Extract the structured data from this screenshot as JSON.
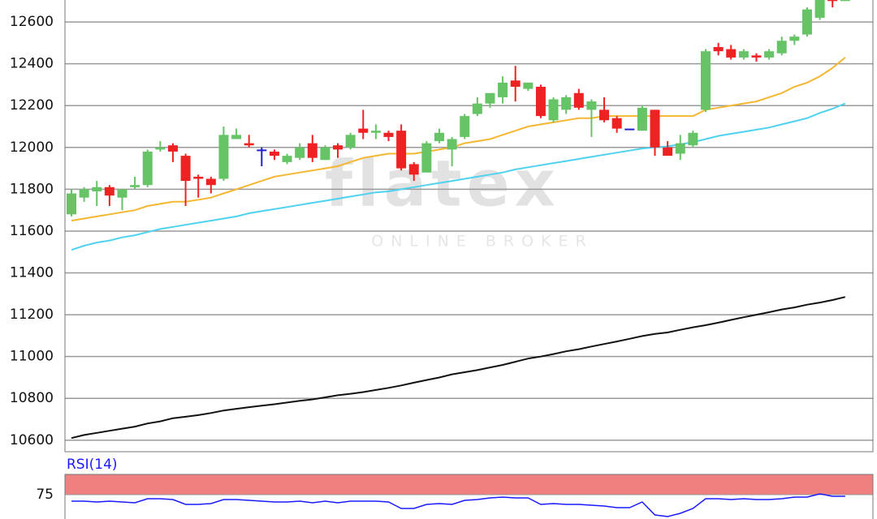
{
  "chart_data": [
    {
      "type": "candlestick",
      "ylim": [
        10545,
        12705
      ],
      "yticks": [
        10600,
        10800,
        11000,
        11200,
        11400,
        11600,
        11800,
        12000,
        12200,
        12400,
        12600
      ],
      "grid": true,
      "up_color": "#66c466",
      "down_color": "#ee2222",
      "flat_color": "#2222cc",
      "open": [
        11680,
        11760,
        11790,
        11810,
        11760,
        11810,
        11820,
        11990,
        12010,
        11960,
        11860,
        11850,
        11850,
        12040,
        12020,
        11990,
        11980,
        11930,
        11950,
        12020,
        11940,
        12010,
        12000,
        12090,
        12070,
        12070,
        12080,
        11920,
        11880,
        12030,
        11990,
        12050,
        12160,
        12210,
        12240,
        12320,
        12280,
        12290,
        12130,
        12180,
        12260,
        12180,
        12180,
        12140,
        12090,
        12080,
        12180,
        12000,
        11970,
        12010,
        12180,
        12480,
        12470,
        12430,
        12440,
        12430,
        12450,
        12510,
        12540,
        12620,
        12720,
        12700
      ],
      "high": [
        11800,
        11810,
        11840,
        11820,
        11800,
        11860,
        11990,
        12030,
        12020,
        11970,
        11870,
        11860,
        12100,
        12090,
        12060,
        12000,
        11990,
        11970,
        12020,
        12060,
        12010,
        12020,
        12070,
        12180,
        12110,
        12080,
        12110,
        11930,
        12030,
        12090,
        12050,
        12160,
        12240,
        12260,
        12340,
        12390,
        12310,
        12300,
        12240,
        12250,
        12280,
        12230,
        12240,
        12150,
        12090,
        12200,
        12180,
        12030,
        12060,
        12080,
        12470,
        12500,
        12490,
        12470,
        12450,
        12470,
        12530,
        12540,
        12670,
        12740,
        12730,
        12720
      ],
      "low": [
        11670,
        11740,
        11720,
        11720,
        11700,
        11800,
        11810,
        11980,
        11930,
        11720,
        11760,
        11780,
        11840,
        12040,
        12000,
        11910,
        11940,
        11920,
        11940,
        11930,
        11940,
        11950,
        11990,
        12040,
        12040,
        12030,
        11890,
        11840,
        11890,
        12020,
        11910,
        12040,
        12150,
        12190,
        12210,
        12220,
        12270,
        12140,
        12120,
        12160,
        12180,
        12050,
        12120,
        12070,
        12090,
        12080,
        11960,
        11960,
        11940,
        12000,
        12170,
        12440,
        12420,
        12420,
        12410,
        12420,
        12440,
        12490,
        12530,
        12610,
        12670,
        12700
      ],
      "close": [
        11780,
        11800,
        11810,
        11770,
        11800,
        11820,
        11980,
        12000,
        11980,
        11840,
        11850,
        11820,
        12060,
        12060,
        12010,
        11990,
        11960,
        11960,
        12000,
        11950,
        12000,
        11990,
        12060,
        12070,
        12080,
        12050,
        11900,
        11870,
        12020,
        12070,
        12040,
        12150,
        12210,
        12260,
        12310,
        12290,
        12310,
        12150,
        12230,
        12240,
        12190,
        12220,
        12130,
        12090,
        12090,
        12190,
        12000,
        11960,
        12020,
        12070,
        12460,
        12460,
        12430,
        12460,
        12430,
        12460,
        12510,
        12530,
        12660,
        12720,
        12700,
        12710
      ],
      "series": [
        {
          "color": "#f5b731",
          "values": [
            11650,
            11660,
            11670,
            11680,
            11690,
            11700,
            11720,
            11730,
            11740,
            11740,
            11750,
            11760,
            11780,
            11800,
            11820,
            11840,
            11860,
            11870,
            11880,
            11890,
            11900,
            11910,
            11930,
            11950,
            11960,
            11970,
            11970,
            11970,
            11980,
            11990,
            12000,
            12020,
            12030,
            12040,
            12060,
            12080,
            12100,
            12110,
            12120,
            12130,
            12140,
            12140,
            12150,
            12150,
            12150,
            12150,
            12150,
            12150,
            12150,
            12150,
            12180,
            12190,
            12200,
            12210,
            12220,
            12240,
            12260,
            12290,
            12310,
            12340,
            12380,
            12430
          ]
        },
        {
          "color": "#4fd2f0",
          "values": [
            11510,
            11530,
            11545,
            11555,
            11570,
            11580,
            11595,
            11610,
            11620,
            11630,
            11640,
            11650,
            11660,
            11670,
            11685,
            11695,
            11705,
            11715,
            11725,
            11735,
            11745,
            11755,
            11765,
            11775,
            11785,
            11790,
            11800,
            11810,
            11820,
            11830,
            11840,
            11850,
            11860,
            11870,
            11880,
            11895,
            11905,
            11915,
            11925,
            11935,
            11945,
            11955,
            11965,
            11975,
            11985,
            11995,
            12000,
            12005,
            12015,
            12025,
            12040,
            12055,
            12065,
            12075,
            12085,
            12095,
            12110,
            12125,
            12140,
            12165,
            12185,
            12210
          ]
        },
        {
          "color": "#111111",
          "values": [
            10610,
            10625,
            10635,
            10645,
            10655,
            10665,
            10680,
            10690,
            10705,
            10712,
            10720,
            10730,
            10742,
            10750,
            10758,
            10765,
            10772,
            10780,
            10788,
            10795,
            10805,
            10815,
            10822,
            10830,
            10840,
            10850,
            10862,
            10875,
            10888,
            10900,
            10915,
            10925,
            10935,
            10948,
            10960,
            10975,
            10990,
            11000,
            11012,
            11025,
            11035,
            11048,
            11060,
            11072,
            11085,
            11098,
            11108,
            11115,
            11128,
            11140,
            11150,
            11162,
            11175,
            11188,
            11200,
            11212,
            11225,
            11235,
            11248,
            11258,
            11270,
            11285
          ]
        }
      ]
    },
    {
      "type": "line",
      "title": "RSI(14)",
      "ylim": [
        45,
        100
      ],
      "yticks": [
        75
      ],
      "zone": [
        75,
        100
      ],
      "zone_color": "#f08080",
      "color": "#1a1aff",
      "values": [
        67,
        67,
        66,
        67,
        66,
        65,
        70,
        70,
        69,
        63,
        63,
        64,
        69,
        69,
        68,
        67,
        66,
        66,
        67,
        65,
        67,
        65,
        67,
        67,
        67,
        66,
        58,
        58,
        63,
        64,
        63,
        68,
        69,
        71,
        72,
        71,
        71,
        63,
        64,
        63,
        63,
        62,
        61,
        59,
        59,
        66,
        50,
        48,
        52,
        58,
        70,
        70,
        69,
        70,
        69,
        69,
        70,
        72,
        72,
        76,
        73,
        73
      ]
    }
  ],
  "watermark": {
    "logo": "flatex",
    "tagline": "ONLINE BROKER"
  }
}
